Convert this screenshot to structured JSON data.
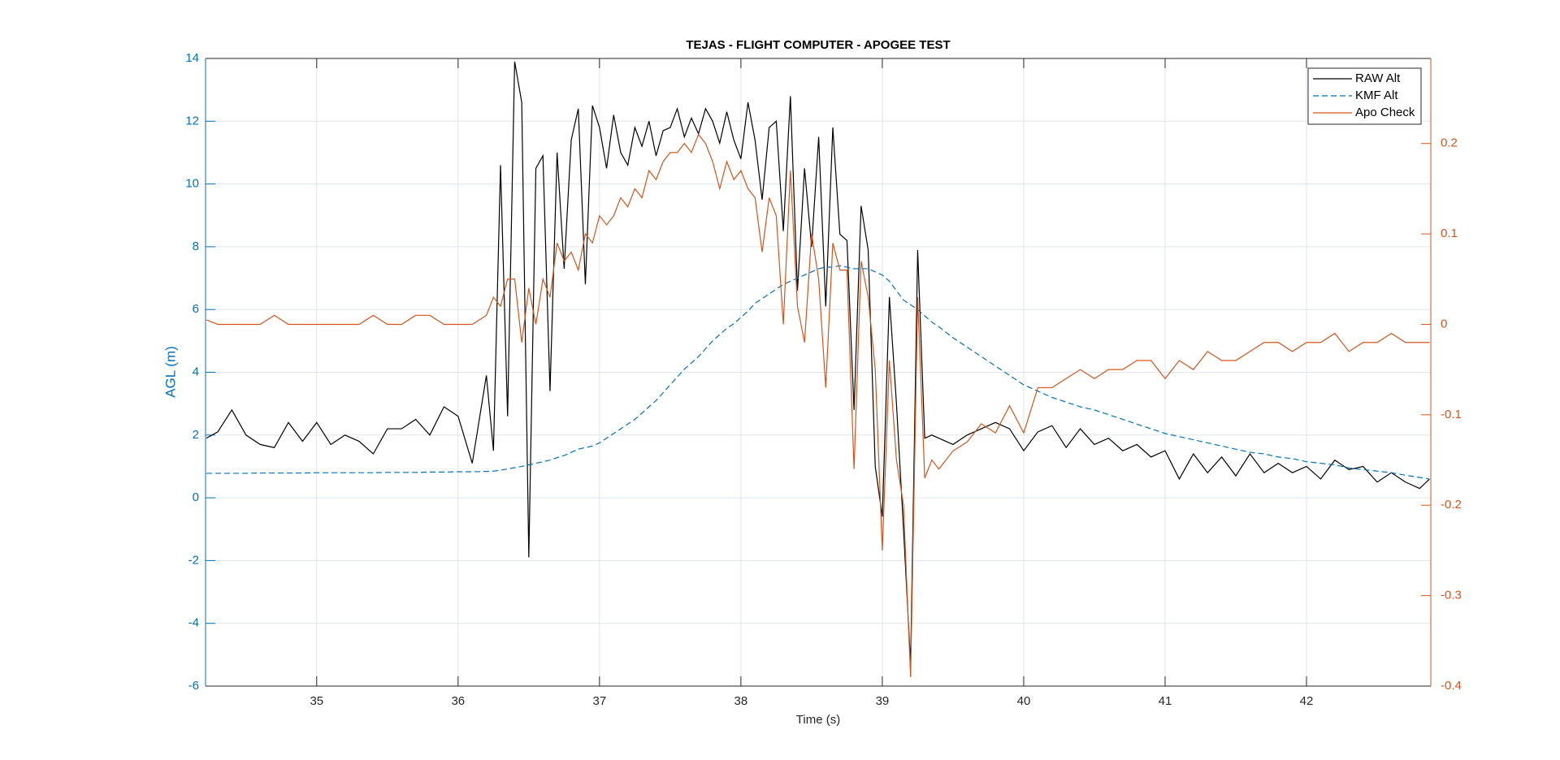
{
  "chart_data": {
    "type": "line",
    "title": "TEJAS - FLIGHT COMPUTER - APOGEE TEST",
    "x_label": "Time (s)",
    "y_label": "AGL (m)",
    "xlim": [
      34.214,
      42.879
    ],
    "ylim": [
      -6,
      14
    ],
    "y2lim": [
      -0.4,
      0.294
    ],
    "xticks": [
      35,
      36,
      37,
      38,
      39,
      40,
      41,
      42
    ],
    "yticks": [
      -6,
      -4,
      -2,
      0,
      2,
      4,
      6,
      8,
      10,
      12,
      14
    ],
    "y2ticks": [
      -0.4,
      -0.3,
      -0.2,
      -0.1,
      0,
      0.1,
      0.2
    ],
    "y_color": "#0072BD",
    "y2_color": "#D95319",
    "grid": true,
    "legend": "northeast",
    "x": [
      34.22,
      34.3,
      34.4,
      34.5,
      34.6,
      34.7,
      34.8,
      34.9,
      35.0,
      35.1,
      35.2,
      35.3,
      35.4,
      35.5,
      35.6,
      35.7,
      35.8,
      35.9,
      36.0,
      36.1,
      36.2,
      36.25,
      36.3,
      36.35,
      36.4,
      36.45,
      36.5,
      36.55,
      36.6,
      36.65,
      36.7,
      36.75,
      36.8,
      36.85,
      36.9,
      36.95,
      37.0,
      37.05,
      37.1,
      37.15,
      37.2,
      37.25,
      37.3,
      37.35,
      37.4,
      37.45,
      37.5,
      37.55,
      37.6,
      37.65,
      37.7,
      37.75,
      37.8,
      37.85,
      37.9,
      37.95,
      38.0,
      38.05,
      38.1,
      38.15,
      38.2,
      38.25,
      38.3,
      38.35,
      38.4,
      38.45,
      38.5,
      38.55,
      38.6,
      38.65,
      38.7,
      38.75,
      38.8,
      38.85,
      38.9,
      38.95,
      39.0,
      39.05,
      39.1,
      39.15,
      39.2,
      39.25,
      39.3,
      39.35,
      39.4,
      39.5,
      39.6,
      39.7,
      39.8,
      39.9,
      40.0,
      40.1,
      40.2,
      40.3,
      40.4,
      40.5,
      40.6,
      40.7,
      40.8,
      40.9,
      41.0,
      41.1,
      41.2,
      41.3,
      41.4,
      41.5,
      41.6,
      41.7,
      41.8,
      41.9,
      42.0,
      42.1,
      42.2,
      42.3,
      42.4,
      42.5,
      42.6,
      42.7,
      42.8,
      42.87
    ],
    "series": [
      {
        "name": "RAW Alt",
        "color": "#000000",
        "dash": "solid",
        "axis": "y",
        "values": [
          1.9,
          2.1,
          2.8,
          2.0,
          1.7,
          1.6,
          2.4,
          1.8,
          2.4,
          1.7,
          2.0,
          1.8,
          1.4,
          2.2,
          2.2,
          2.5,
          2.0,
          2.9,
          2.6,
          1.1,
          3.9,
          1.5,
          10.6,
          2.6,
          13.9,
          12.6,
          -1.9,
          10.5,
          10.9,
          3.4,
          11.0,
          7.3,
          11.4,
          12.4,
          6.8,
          12.5,
          11.8,
          10.5,
          12.2,
          11.0,
          10.6,
          11.8,
          11.2,
          12.0,
          10.9,
          11.7,
          11.8,
          12.4,
          11.5,
          12.1,
          11.6,
          12.4,
          12.0,
          11.3,
          12.3,
          11.4,
          10.8,
          12.6,
          11.4,
          9.5,
          11.8,
          12.0,
          8.5,
          12.8,
          6.6,
          10.5,
          8.0,
          11.5,
          6.1,
          11.8,
          8.4,
          8.2,
          2.8,
          9.3,
          7.9,
          1.0,
          -0.6,
          6.4,
          3.0,
          -1.0,
          -5.3,
          7.9,
          1.9,
          2.0,
          1.9,
          1.7,
          2.0,
          2.2,
          2.4,
          2.2,
          1.5,
          2.1,
          2.3,
          1.6,
          2.2,
          1.7,
          1.9,
          1.5,
          1.7,
          1.3,
          1.5,
          0.6,
          1.4,
          0.8,
          1.3,
          0.7,
          1.4,
          0.8,
          1.1,
          0.8,
          1.0,
          0.6,
          1.2,
          0.9,
          1.0,
          0.5,
          0.8,
          0.5,
          0.3,
          0.6
        ]
      },
      {
        "name": "KMF Alt",
        "color": "#0072BD",
        "dash": "dashed",
        "axis": "y",
        "values": [
          0.78,
          0.78,
          0.78,
          0.78,
          0.79,
          0.79,
          0.79,
          0.79,
          0.8,
          0.8,
          0.8,
          0.8,
          0.8,
          0.81,
          0.81,
          0.81,
          0.82,
          0.82,
          0.83,
          0.83,
          0.84,
          0.85,
          0.88,
          0.92,
          0.96,
          1.0,
          1.05,
          1.1,
          1.15,
          1.2,
          1.28,
          1.35,
          1.45,
          1.55,
          1.6,
          1.65,
          1.75,
          1.9,
          2.05,
          2.2,
          2.35,
          2.5,
          2.7,
          2.9,
          3.1,
          3.35,
          3.6,
          3.85,
          4.1,
          4.3,
          4.5,
          4.75,
          5.0,
          5.2,
          5.4,
          5.55,
          5.75,
          5.95,
          6.2,
          6.35,
          6.5,
          6.65,
          6.8,
          6.9,
          7.0,
          7.1,
          7.2,
          7.3,
          7.35,
          7.35,
          7.4,
          7.35,
          7.3,
          7.3,
          7.3,
          7.2,
          7.1,
          6.9,
          6.6,
          6.3,
          6.15,
          6.0,
          5.8,
          5.6,
          5.45,
          5.1,
          4.8,
          4.5,
          4.2,
          3.9,
          3.6,
          3.4,
          3.2,
          3.05,
          2.9,
          2.8,
          2.65,
          2.5,
          2.35,
          2.2,
          2.05,
          1.95,
          1.85,
          1.75,
          1.65,
          1.55,
          1.45,
          1.4,
          1.3,
          1.25,
          1.15,
          1.1,
          1.05,
          0.95,
          0.9,
          0.85,
          0.8,
          0.72,
          0.65,
          0.6
        ]
      },
      {
        "name": "Apo Check",
        "color": "#D95319",
        "dash": "solid",
        "axis": "y2",
        "values": [
          0.005,
          0,
          0,
          0,
          0,
          0.01,
          0,
          0,
          0,
          0,
          0,
          0,
          0.01,
          0,
          0,
          0.01,
          0.01,
          0,
          0,
          0,
          0.01,
          0.03,
          0.02,
          0.05,
          0.05,
          -0.02,
          0.04,
          0.0,
          0.05,
          0.03,
          0.09,
          0.07,
          0.08,
          0.06,
          0.1,
          0.09,
          0.12,
          0.11,
          0.12,
          0.14,
          0.13,
          0.15,
          0.14,
          0.17,
          0.16,
          0.18,
          0.19,
          0.19,
          0.2,
          0.19,
          0.21,
          0.2,
          0.18,
          0.15,
          0.18,
          0.16,
          0.17,
          0.15,
          0.14,
          0.08,
          0.14,
          0.12,
          0.0,
          0.17,
          0.02,
          -0.02,
          0.1,
          0.05,
          -0.07,
          0.09,
          0.06,
          0.06,
          -0.16,
          0.07,
          0.03,
          -0.05,
          -0.25,
          -0.04,
          -0.15,
          -0.2,
          -0.39,
          0.03,
          -0.17,
          -0.15,
          -0.16,
          -0.14,
          -0.13,
          -0.11,
          -0.12,
          -0.09,
          -0.12,
          -0.07,
          -0.07,
          -0.06,
          -0.05,
          -0.06,
          -0.05,
          -0.05,
          -0.04,
          -0.04,
          -0.06,
          -0.04,
          -0.05,
          -0.03,
          -0.04,
          -0.04,
          -0.03,
          -0.02,
          -0.02,
          -0.03,
          -0.02,
          -0.02,
          -0.01,
          -0.03,
          -0.02,
          -0.02,
          -0.01,
          -0.02,
          -0.02,
          -0.02
        ]
      }
    ]
  }
}
